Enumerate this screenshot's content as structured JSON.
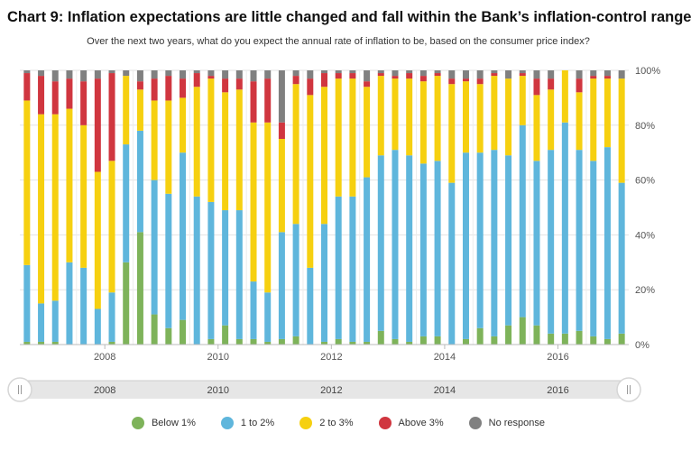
{
  "title": "Chart 9: Inflation expectations are little changed and fall within the Bank’s inflation-control range",
  "subtitle": "Over the next two years, what do you expect the annual rate of inflation to be, based on the consumer price index?",
  "navigator": {
    "labels": [
      "2008",
      "2010",
      "2012",
      "2014",
      "2016"
    ],
    "left_handle": "||",
    "right_handle": "||"
  },
  "colors": {
    "below1": "#7eb35a",
    "one_to_two": "#5fb6dc",
    "two_to_three": "#f6d010",
    "above3": "#d0363f",
    "no_response": "#808080"
  },
  "chart_data": {
    "type": "bar",
    "stacked": true,
    "x_tick_labels": [
      "2008",
      "2010",
      "2012",
      "2014",
      "2016"
    ],
    "y_tick_labels": [
      "0%",
      "20%",
      "40%",
      "60%",
      "80%",
      "100%"
    ],
    "ylim": [
      0,
      100
    ],
    "grid": true,
    "legend_position": "bottom",
    "categories": [
      "2007Q1",
      "2007Q2",
      "2007Q3",
      "2007Q4",
      "2008Q1",
      "2008Q2",
      "2008Q3",
      "2008Q4",
      "2009Q1",
      "2009Q2",
      "2009Q3",
      "2009Q4",
      "2010Q1",
      "2010Q2",
      "2010Q3",
      "2010Q4",
      "2011Q1",
      "2011Q2",
      "2011Q3",
      "2011Q4",
      "2012Q1",
      "2012Q2",
      "2012Q3",
      "2012Q4",
      "2013Q1",
      "2013Q2",
      "2013Q3",
      "2013Q4",
      "2014Q1",
      "2014Q2",
      "2014Q3",
      "2014Q4",
      "2015Q1",
      "2015Q2",
      "2015Q3",
      "2015Q4",
      "2016Q1",
      "2016Q2",
      "2016Q3",
      "2016Q4",
      "2017Q1",
      "2017Q2",
      "2017Q3"
    ],
    "series": [
      {
        "name": "Below 1%",
        "key": "below1",
        "values": [
          1,
          1,
          1,
          0,
          0,
          0,
          1,
          30,
          41,
          11,
          6,
          9,
          0,
          2,
          7,
          2,
          2,
          1,
          2,
          3,
          0,
          1,
          2,
          1,
          1,
          5,
          2,
          1,
          3,
          3,
          0,
          2,
          6,
          3,
          7,
          10,
          7,
          4,
          4,
          5,
          3,
          2,
          4
        ]
      },
      {
        "name": "1 to 2%",
        "key": "one_to_two",
        "values": [
          28,
          14,
          15,
          30,
          28,
          13,
          18,
          43,
          37,
          49,
          49,
          61,
          54,
          50,
          42,
          47,
          21,
          18,
          39,
          41,
          28,
          43,
          52,
          53,
          60,
          64,
          69,
          68,
          63,
          64,
          59,
          68,
          64,
          68,
          62,
          70,
          60,
          67,
          77,
          66,
          64,
          70,
          55
        ]
      },
      {
        "name": "2 to 3%",
        "key": "two_to_three",
        "values": [
          60,
          69,
          68,
          56,
          52,
          50,
          48,
          25,
          15,
          29,
          34,
          20,
          40,
          45,
          43,
          44,
          58,
          62,
          34,
          51,
          63,
          50,
          43,
          43,
          33,
          29,
          26,
          28,
          30,
          31,
          36,
          26,
          25,
          27,
          28,
          18,
          24,
          22,
          19,
          21,
          30,
          25,
          38
        ]
      },
      {
        "name": "Above 3%",
        "key": "above3",
        "values": [
          10,
          14,
          12,
          11,
          16,
          34,
          32,
          0,
          3,
          8,
          9,
          7,
          5,
          1,
          5,
          4,
          15,
          16,
          6,
          3,
          6,
          5,
          2,
          2,
          2,
          1,
          1,
          2,
          2,
          1,
          2,
          1,
          2,
          1,
          0,
          1,
          6,
          4,
          0,
          5,
          1,
          1,
          0
        ]
      },
      {
        "name": "No response",
        "key": "no_response",
        "values": [
          1,
          2,
          4,
          3,
          4,
          3,
          1,
          2,
          4,
          3,
          2,
          3,
          1,
          2,
          3,
          3,
          4,
          3,
          19,
          2,
          3,
          1,
          1,
          1,
          4,
          1,
          2,
          1,
          2,
          1,
          3,
          3,
          3,
          1,
          3,
          1,
          3,
          3,
          0,
          3,
          2,
          2,
          3
        ]
      }
    ]
  }
}
